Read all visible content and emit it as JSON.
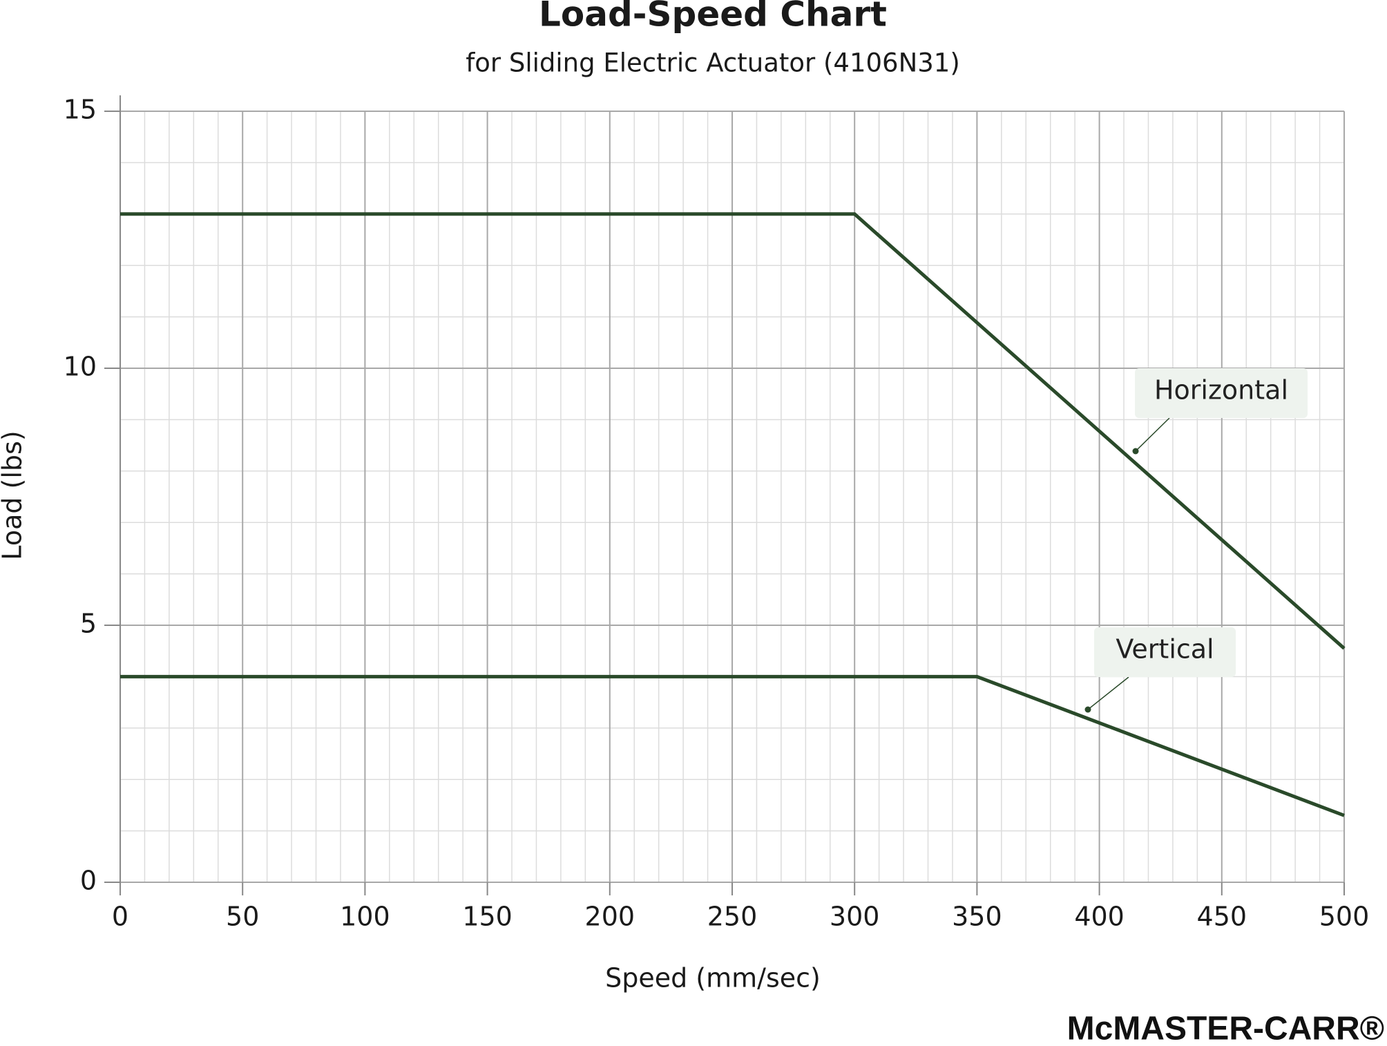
{
  "chart_data": {
    "type": "line",
    "title": "Load-Speed Chart",
    "subtitle": "for Sliding Electric Actuator (4106N31)",
    "x_label": "Speed (mm/sec)",
    "y_label": "Load (lbs)",
    "xlim": [
      0,
      500
    ],
    "ylim": [
      0,
      15
    ],
    "xticks": [
      0,
      50,
      100,
      150,
      200,
      250,
      300,
      350,
      400,
      450,
      500
    ],
    "yticks": [
      0,
      5,
      10,
      15
    ],
    "grid": true,
    "minor_grid": true,
    "series": [
      {
        "name": "Horizontal",
        "color": "#2a4a2a",
        "x": [
          0,
          300,
          500
        ],
        "values": [
          13,
          13,
          4.55
        ]
      },
      {
        "name": "Vertical",
        "color": "#2a4a2a",
        "x": [
          0,
          350,
          500
        ],
        "values": [
          4,
          4,
          1.3
        ]
      }
    ],
    "brand": "McMASTER-CARR®"
  }
}
